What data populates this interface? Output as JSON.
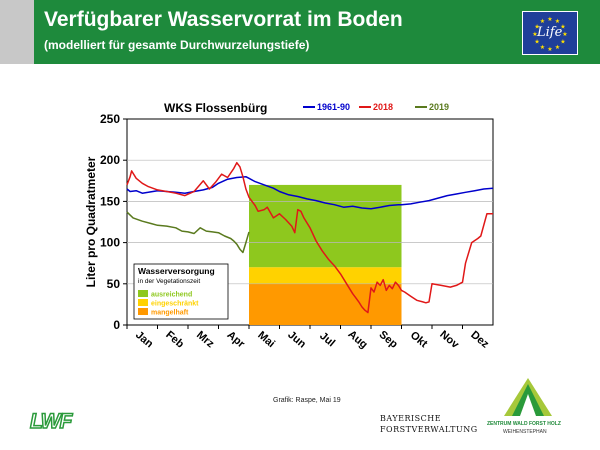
{
  "header": {
    "title": "Verfügbarer Wasservorrat im Boden",
    "subtitle": "(modelliert für gesamte Durchwurzelungstiefe)",
    "background_color": "#1e8a3c"
  },
  "eu_logo": {
    "label": "Life",
    "background_color": "#1f3f99"
  },
  "footer": {
    "credit": "Grafik: Raspe, Mai 19",
    "lwf_logo": "LWF",
    "bf_line1": "BAYERISCHE",
    "bf_line2": "FORSTVERWALTUNG",
    "zw_line1": "ZENTRUM WALD FORST HOLZ",
    "zw_line2": "WEIHENSTEPHAN"
  },
  "chart_data": {
    "type": "line",
    "title": "WKS Flossenbürg",
    "ylabel": "Liter pro Quadratmeter",
    "xlabel": "",
    "ylim": [
      0,
      250
    ],
    "yticks": [
      0,
      50,
      100,
      150,
      200,
      250
    ],
    "months": [
      "Jan",
      "Feb",
      "Mrz",
      "Apr",
      "Mai",
      "Jun",
      "Jul",
      "Aug",
      "Sep",
      "Okt",
      "Nov",
      "Dez"
    ],
    "x_unit": "month",
    "grid": true,
    "series": [
      {
        "name": "1961-90",
        "color": "#0000cc",
        "x": [
          0,
          0.1,
          0.3,
          0.5,
          0.7,
          1.0,
          1.3,
          1.6,
          1.9,
          2.2,
          2.5,
          2.8,
          3.0,
          3.3,
          3.6,
          3.9,
          4.0,
          4.2,
          4.5,
          4.8,
          5.0,
          5.3,
          5.6,
          5.9,
          6.2,
          6.5,
          6.8,
          7.1,
          7.4,
          7.7,
          8.0,
          8.3,
          8.6,
          8.9,
          9.0,
          9.3,
          9.6,
          9.9,
          10.2,
          10.5,
          10.8,
          11.1,
          11.4,
          11.7,
          12.0
        ],
        "values": [
          165,
          162,
          163,
          160,
          161,
          163,
          162,
          161,
          160,
          162,
          164,
          167,
          172,
          177,
          179,
          180,
          178,
          174,
          170,
          166,
          162,
          158,
          156,
          153,
          151,
          148,
          146,
          143,
          144,
          142,
          141,
          143,
          145,
          146,
          146,
          147,
          149,
          151,
          154,
          157,
          159,
          161,
          163,
          165,
          166
        ]
      },
      {
        "name": "2018",
        "color": "#e01818",
        "x": [
          0,
          0.1,
          0.15,
          0.3,
          0.5,
          0.7,
          1.0,
          1.3,
          1.6,
          1.9,
          2.2,
          2.5,
          2.7,
          2.9,
          3.1,
          3.3,
          3.5,
          3.6,
          3.7,
          3.8,
          3.9,
          4.0,
          4.2,
          4.3,
          4.5,
          4.6,
          4.8,
          5.0,
          5.2,
          5.4,
          5.5,
          5.6,
          5.7,
          5.8,
          6.0,
          6.2,
          6.4,
          6.6,
          6.8,
          7.0,
          7.2,
          7.4,
          7.5,
          7.6,
          7.7,
          7.8,
          7.9,
          8.0,
          8.1,
          8.2,
          8.3,
          8.4,
          8.5,
          8.6,
          8.7,
          8.8,
          8.9,
          9.0,
          9.1,
          9.3,
          9.5,
          9.7,
          9.8,
          9.9,
          10.0,
          10.3,
          10.6,
          10.8,
          11.0,
          11.1,
          11.3,
          11.5,
          11.6,
          11.8,
          12.0
        ],
        "values": [
          170,
          180,
          187,
          178,
          172,
          168,
          164,
          162,
          160,
          157,
          162,
          175,
          165,
          173,
          183,
          179,
          190,
          197,
          192,
          180,
          165,
          155,
          145,
          138,
          140,
          143,
          130,
          135,
          128,
          120,
          112,
          140,
          138,
          130,
          118,
          102,
          90,
          80,
          72,
          62,
          50,
          38,
          33,
          28,
          22,
          18,
          15,
          45,
          40,
          52,
          48,
          55,
          42,
          48,
          44,
          52,
          48,
          42,
          40,
          35,
          30,
          28,
          27,
          28,
          50,
          48,
          46,
          48,
          52,
          75,
          100,
          105,
          108,
          135,
          135
        ]
      },
      {
        "name": "2019",
        "color": "#5a7a1e",
        "x": [
          0,
          0.2,
          0.5,
          0.8,
          1.0,
          1.3,
          1.6,
          1.8,
          2.0,
          2.2,
          2.4,
          2.6,
          2.8,
          3.0,
          3.2,
          3.4,
          3.5,
          3.6,
          3.7,
          3.8,
          3.9,
          4.0
        ],
        "values": [
          137,
          130,
          126,
          123,
          121,
          120,
          118,
          114,
          113,
          111,
          118,
          114,
          113,
          112,
          108,
          105,
          102,
          98,
          92,
          88,
          100,
          113
        ]
      }
    ],
    "bands": {
      "x_start": 4.0,
      "x_end": 9.0,
      "ranges": [
        {
          "from": 70,
          "to": 170,
          "label": "ausreichend",
          "color": "#8ec81e"
        },
        {
          "from": 50,
          "to": 70,
          "label": "eingeschränkt",
          "color": "#ffd200"
        },
        {
          "from": 0,
          "to": 50,
          "label": "mangelhaft",
          "color": "#ff9900"
        }
      ]
    },
    "legend_box": {
      "title": "Wasserversorgung",
      "subtitle": "in der Vegetationszeit"
    }
  }
}
